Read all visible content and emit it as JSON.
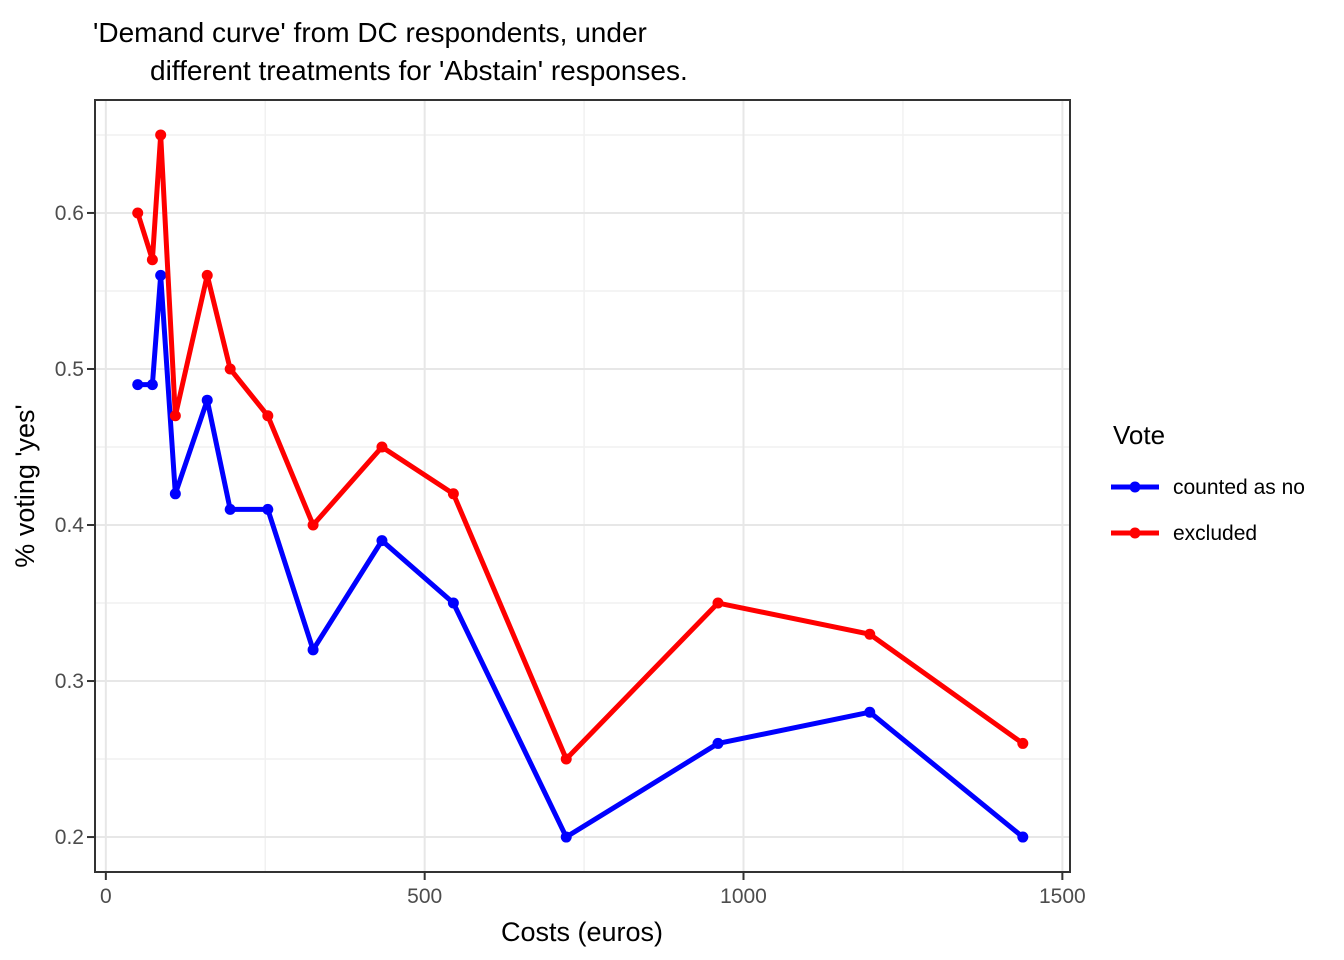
{
  "title": {
    "line1": "'Demand curve' from DC respondents, under",
    "line2": "different treatments for 'Abstain' responses."
  },
  "legend": {
    "title": "Vote",
    "items": [
      {
        "label": "counted as no",
        "color": "#0000FF"
      },
      {
        "label": "excluded",
        "color": "#FF0000"
      }
    ]
  },
  "chart_data": {
    "type": "line",
    "title": "'Demand curve' from DC respondents, under different treatments for 'Abstain' responses.",
    "xlabel": "Costs (euros)",
    "ylabel": "% voting 'yes'",
    "x": [
      50,
      73,
      86,
      109,
      159,
      195,
      254,
      325,
      433,
      545,
      722,
      960,
      1198,
      1438
    ],
    "series": [
      {
        "name": "counted as no",
        "color": "#0000FF",
        "values": [
          0.49,
          0.49,
          0.56,
          0.42,
          0.48,
          0.41,
          0.41,
          0.32,
          0.39,
          0.35,
          0.2,
          0.26,
          0.28,
          0.2
        ]
      },
      {
        "name": "excluded",
        "color": "#FF0000",
        "values": [
          0.6,
          0.57,
          0.65,
          0.47,
          0.56,
          0.5,
          0.47,
          0.4,
          0.45,
          0.42,
          0.25,
          0.35,
          0.33,
          0.26
        ]
      }
    ],
    "xlim": [
      -17,
      1512
    ],
    "ylim": [
      0.1776,
      0.6724
    ],
    "x_ticks": [
      0,
      500,
      1000,
      1500
    ],
    "y_ticks": [
      0.2,
      0.3,
      0.4,
      0.5,
      0.6
    ],
    "x_minor_gridlines": [
      250,
      750,
      1250
    ],
    "y_minor_gridlines": [
      0.25,
      0.35,
      0.45,
      0.55,
      0.65
    ],
    "grid": true,
    "legend_position": "right"
  }
}
